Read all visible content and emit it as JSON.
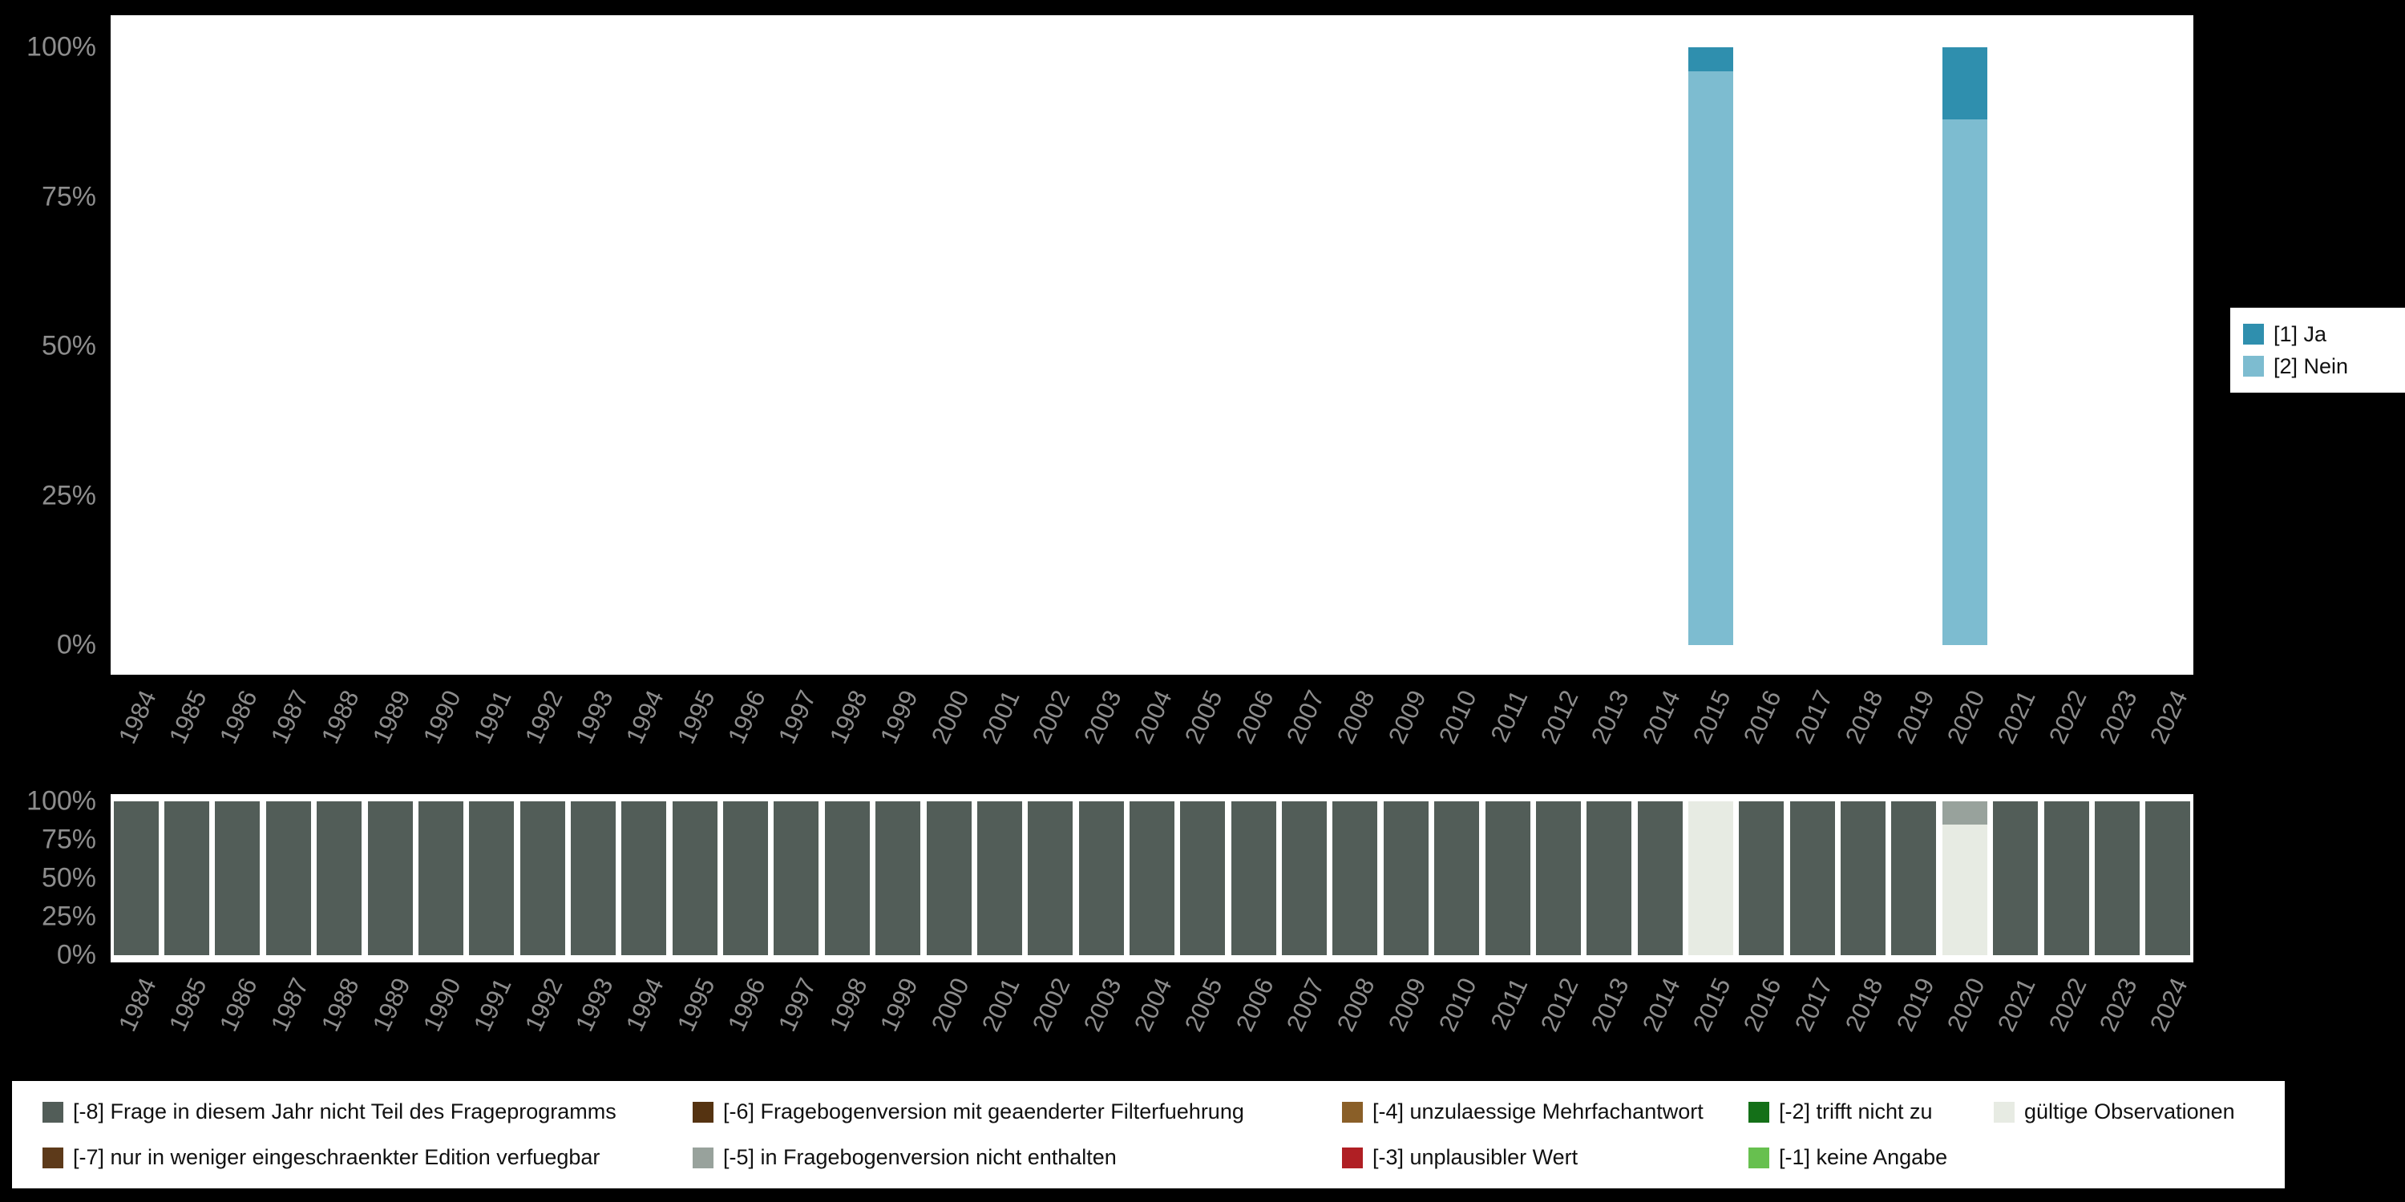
{
  "colors": {
    "background": "#000000",
    "plot_background": "#ffffff",
    "axis_text": "#8d8d8d",
    "legend_background": "#ffffff",
    "legend_text": "#111111"
  },
  "chart_data": [
    {
      "type": "bar",
      "stacked": true,
      "title": "",
      "xlabel": "",
      "ylabel": "",
      "ylim": [
        0,
        100
      ],
      "grid": false,
      "legend_position": "right",
      "y_ticks": [
        "100%",
        "75%",
        "50%",
        "25%",
        "0%"
      ],
      "categories": [
        "1984",
        "1985",
        "1986",
        "1987",
        "1988",
        "1989",
        "1990",
        "1991",
        "1992",
        "1993",
        "1994",
        "1995",
        "1996",
        "1997",
        "1998",
        "1999",
        "2000",
        "2001",
        "2002",
        "2003",
        "2004",
        "2005",
        "2006",
        "2007",
        "2008",
        "2009",
        "2010",
        "2011",
        "2012",
        "2013",
        "2014",
        "2015",
        "2016",
        "2017",
        "2018",
        "2019",
        "2020",
        "2021",
        "2022",
        "2023",
        "2024"
      ],
      "series": [
        {
          "name": "[1] Ja",
          "color": "#2f8fae",
          "values": [
            0,
            0,
            0,
            0,
            0,
            0,
            0,
            0,
            0,
            0,
            0,
            0,
            0,
            0,
            0,
            0,
            0,
            0,
            0,
            0,
            0,
            0,
            0,
            0,
            0,
            0,
            0,
            0,
            0,
            0,
            0,
            4,
            0,
            0,
            0,
            0,
            12,
            0,
            0,
            0,
            0
          ]
        },
        {
          "name": "[2] Nein",
          "color": "#7dbcd0",
          "values": [
            0,
            0,
            0,
            0,
            0,
            0,
            0,
            0,
            0,
            0,
            0,
            0,
            0,
            0,
            0,
            0,
            0,
            0,
            0,
            0,
            0,
            0,
            0,
            0,
            0,
            0,
            0,
            0,
            0,
            0,
            0,
            96,
            0,
            0,
            0,
            0,
            88,
            0,
            0,
            0,
            0
          ]
        }
      ]
    },
    {
      "type": "bar",
      "stacked": true,
      "title": "",
      "xlabel": "",
      "ylabel": "",
      "ylim": [
        0,
        100
      ],
      "grid": false,
      "legend_position": "bottom",
      "y_ticks": [
        "100%",
        "75%",
        "50%",
        "25%",
        "0%"
      ],
      "categories": [
        "1984",
        "1985",
        "1986",
        "1987",
        "1988",
        "1989",
        "1990",
        "1991",
        "1992",
        "1993",
        "1994",
        "1995",
        "1996",
        "1997",
        "1998",
        "1999",
        "2000",
        "2001",
        "2002",
        "2003",
        "2004",
        "2005",
        "2006",
        "2007",
        "2008",
        "2009",
        "2010",
        "2011",
        "2012",
        "2013",
        "2014",
        "2015",
        "2016",
        "2017",
        "2018",
        "2019",
        "2020",
        "2021",
        "2022",
        "2023",
        "2024"
      ],
      "series": [
        {
          "name": "[-8] Frage in diesem Jahr nicht Teil des Frageprogramms",
          "color": "#525d58",
          "values": [
            100,
            100,
            100,
            100,
            100,
            100,
            100,
            100,
            100,
            100,
            100,
            100,
            100,
            100,
            100,
            100,
            100,
            100,
            100,
            100,
            100,
            100,
            100,
            100,
            100,
            100,
            100,
            100,
            100,
            100,
            100,
            0,
            100,
            100,
            100,
            100,
            0,
            100,
            100,
            100,
            100
          ]
        },
        {
          "name": "[-5] in Fragebogenversion nicht enthalten",
          "color": "#98a29c",
          "values": [
            0,
            0,
            0,
            0,
            0,
            0,
            0,
            0,
            0,
            0,
            0,
            0,
            0,
            0,
            0,
            0,
            0,
            0,
            0,
            0,
            0,
            0,
            0,
            0,
            0,
            0,
            0,
            0,
            0,
            0,
            0,
            0,
            0,
            0,
            0,
            0,
            15,
            0,
            0,
            0,
            0
          ]
        },
        {
          "name": "gültige Observationen",
          "color": "#e7ebe3",
          "values": [
            0,
            0,
            0,
            0,
            0,
            0,
            0,
            0,
            0,
            0,
            0,
            0,
            0,
            0,
            0,
            0,
            0,
            0,
            0,
            0,
            0,
            0,
            0,
            0,
            0,
            0,
            0,
            0,
            0,
            0,
            0,
            100,
            0,
            0,
            0,
            0,
            85,
            0,
            0,
            0,
            0
          ]
        }
      ]
    }
  ],
  "answer_legend": {
    "items": [
      {
        "label": "[1] Ja",
        "color": "#2f8fae"
      },
      {
        "label": "[2] Nein",
        "color": "#7dbcd0"
      }
    ]
  },
  "missing_legend": {
    "items": [
      {
        "label": "[-8] Frage in diesem Jahr nicht Teil des Frageprogramms",
        "color": "#525d58"
      },
      {
        "label": "[-7] nur in weniger eingeschraenkter Edition verfuegbar",
        "color": "#5d3a1a"
      },
      {
        "label": "[-6] Fragebogenversion mit geaenderter Filterfuehrung",
        "color": "#553311"
      },
      {
        "label": "[-5] in Fragebogenversion nicht enthalten",
        "color": "#98a29c"
      },
      {
        "label": "[-4] unzulaessige Mehrfachantwort",
        "color": "#8a5f28"
      },
      {
        "label": "[-3] unplausibler Wert",
        "color": "#b01f24"
      },
      {
        "label": "[-2] trifft nicht zu",
        "color": "#147018"
      },
      {
        "label": "[-1] keine Angabe",
        "color": "#67c04f"
      },
      {
        "label": "gültige Observationen",
        "color": "#e7ebe3"
      }
    ]
  }
}
